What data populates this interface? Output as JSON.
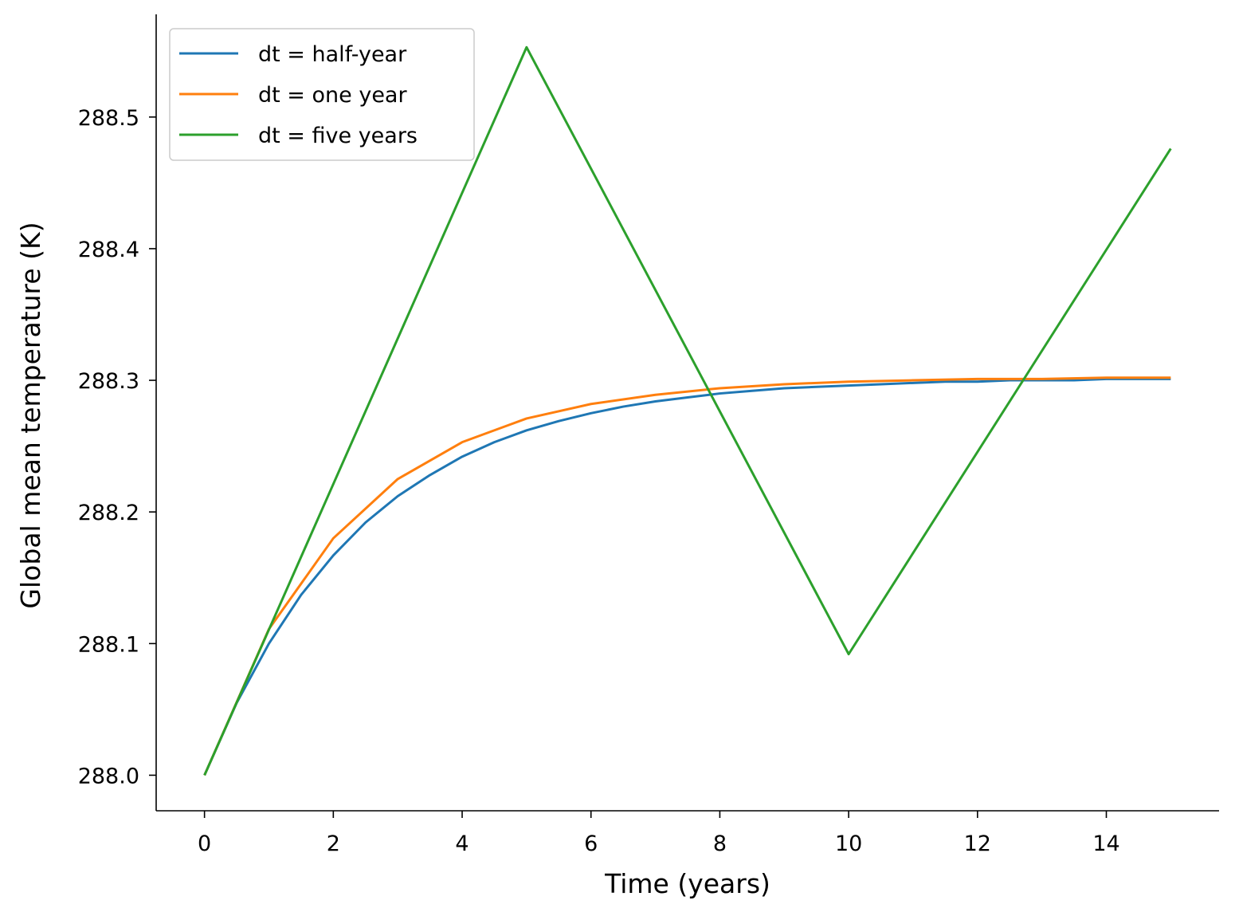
{
  "chart_data": {
    "type": "line",
    "title": "",
    "xlabel": "Time (years)",
    "ylabel": "Global mean temperature (K)",
    "xlim": [
      -0.75,
      15.75
    ],
    "ylim": [
      287.973,
      288.578
    ],
    "xticks": [
      0,
      2,
      4,
      6,
      8,
      10,
      12,
      14
    ],
    "xtick_labels": [
      "0",
      "2",
      "4",
      "6",
      "8",
      "10",
      "12",
      "14"
    ],
    "yticks": [
      288.0,
      288.1,
      288.2,
      288.3,
      288.4,
      288.5
    ],
    "ytick_labels": [
      "288.0",
      "288.1",
      "288.2",
      "288.3",
      "288.4",
      "288.5"
    ],
    "grid": false,
    "legend_position": "top-left",
    "series": [
      {
        "name": "dt = half-year",
        "color": "#1f77b4",
        "x": [
          0,
          0.5,
          1,
          1.5,
          2,
          2.5,
          3,
          3.5,
          4,
          4.5,
          5,
          5.5,
          6,
          6.5,
          7,
          7.5,
          8,
          8.5,
          9,
          9.5,
          10,
          10.5,
          11,
          11.5,
          12,
          12.5,
          13,
          13.5,
          14,
          14.5,
          15
        ],
        "values": [
          288.0,
          288.055,
          288.1,
          288.137,
          288.167,
          288.192,
          288.212,
          288.228,
          288.242,
          288.253,
          288.262,
          288.269,
          288.275,
          288.28,
          288.284,
          288.287,
          288.29,
          288.292,
          288.294,
          288.295,
          288.296,
          288.297,
          288.298,
          288.299,
          288.299,
          288.3,
          288.3,
          288.3,
          288.301,
          288.301,
          288.301
        ]
      },
      {
        "name": "dt = one year",
        "color": "#ff7f0e",
        "x": [
          0,
          1,
          2,
          3,
          4,
          5,
          6,
          7,
          8,
          9,
          10,
          11,
          12,
          13,
          14,
          15
        ],
        "values": [
          288.0,
          288.111,
          288.18,
          288.225,
          288.253,
          288.271,
          288.282,
          288.289,
          288.294,
          288.297,
          288.299,
          288.3,
          288.301,
          288.301,
          288.302,
          288.302
        ]
      },
      {
        "name": "dt = five years",
        "color": "#2ca02c",
        "x": [
          0,
          5,
          10,
          15
        ],
        "values": [
          288.0,
          288.553,
          288.092,
          288.476
        ]
      }
    ]
  }
}
